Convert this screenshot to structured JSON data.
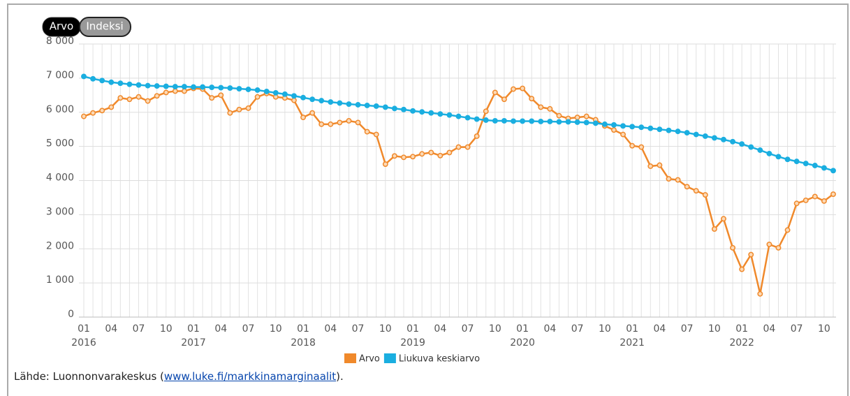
{
  "buttons": [
    "Arvo",
    "Indeksi"
  ],
  "chart_data": {
    "type": "line",
    "categories": [
      "01",
      null,
      null,
      "04",
      null,
      null,
      "07",
      null,
      null,
      "10",
      null,
      null,
      "01",
      null,
      null,
      "04",
      null,
      null,
      "07",
      null,
      null,
      "10",
      null,
      null,
      "01",
      null,
      null,
      "04",
      null,
      null,
      "07",
      null,
      null,
      "10",
      null,
      null,
      "01",
      null,
      null,
      "04",
      null,
      null,
      "07",
      null,
      null,
      "10",
      null,
      null,
      "01",
      null,
      null,
      "04",
      null,
      null,
      "07",
      null,
      null,
      "10",
      null,
      null,
      "01",
      null,
      null,
      "04",
      null,
      null,
      "07",
      null,
      null,
      "10",
      null,
      null,
      "01",
      null,
      null,
      "04",
      null,
      null,
      "07",
      null,
      null,
      "10",
      null
    ],
    "year_labels": [
      "2016",
      "2017",
      "2018",
      "2019",
      "2020",
      "2021",
      "2022"
    ],
    "series": [
      {
        "name": "Arvo",
        "color": "#f0892b",
        "values": [
          5880,
          5980,
          6050,
          6150,
          6420,
          6380,
          6450,
          6330,
          6480,
          6580,
          6620,
          6620,
          6700,
          6680,
          6420,
          6500,
          5980,
          6080,
          6120,
          6450,
          6550,
          6450,
          6420,
          6350,
          5850,
          5980,
          5650,
          5650,
          5700,
          5750,
          5700,
          5430,
          5350,
          4480,
          4720,
          4680,
          4700,
          4780,
          4820,
          4730,
          4820,
          4980,
          4980,
          5300,
          6030,
          6580,
          6380,
          6680,
          6700,
          6400,
          6150,
          6100,
          5900,
          5820,
          5850,
          5880,
          5780,
          5600,
          5480,
          5350,
          5020,
          4980,
          4420,
          4450,
          4050,
          4020,
          3820,
          3700,
          3580,
          2580,
          2880,
          2030,
          1400,
          1830,
          680,
          2130,
          2030,
          2550,
          3330,
          3420,
          3530,
          3400,
          3600
        ]
      },
      {
        "name": "Liukuva keskiarvo",
        "color": "#1aaee0",
        "values": [
          7050,
          6980,
          6930,
          6880,
          6850,
          6820,
          6800,
          6780,
          6770,
          6760,
          6750,
          6750,
          6740,
          6740,
          6730,
          6720,
          6710,
          6690,
          6670,
          6650,
          6610,
          6570,
          6530,
          6480,
          6430,
          6380,
          6340,
          6300,
          6270,
          6240,
          6220,
          6200,
          6180,
          6150,
          6110,
          6080,
          6040,
          6010,
          5980,
          5950,
          5920,
          5880,
          5840,
          5800,
          5770,
          5750,
          5750,
          5740,
          5740,
          5740,
          5730,
          5730,
          5720,
          5720,
          5710,
          5700,
          5680,
          5650,
          5630,
          5600,
          5580,
          5560,
          5530,
          5500,
          5470,
          5440,
          5400,
          5350,
          5300,
          5250,
          5200,
          5140,
          5070,
          4980,
          4890,
          4790,
          4700,
          4620,
          4560,
          4500,
          4440,
          4370,
          4290
        ]
      }
    ],
    "ylim": [
      0,
      8000
    ],
    "yticks": [
      0,
      {
        "value": 1000,
        "label": "1 000"
      },
      {
        "value": 2000,
        "label": "2 000"
      },
      {
        "value": 3000,
        "label": "3 000"
      },
      {
        "value": 4000,
        "label": "4 000"
      },
      {
        "value": 5000,
        "label": "5 000"
      },
      {
        "value": 6000,
        "label": "6 000"
      },
      {
        "value": 7000,
        "label": "7 000"
      },
      {
        "value": 8000,
        "label": "8 000"
      }
    ],
    "grid": true,
    "legend": "bottom"
  },
  "source": {
    "prefix": "Lähde: Luonnonvarakeskus (",
    "link": "www.luke.fi/markkinamarginaalit",
    "suffix": ")."
  }
}
